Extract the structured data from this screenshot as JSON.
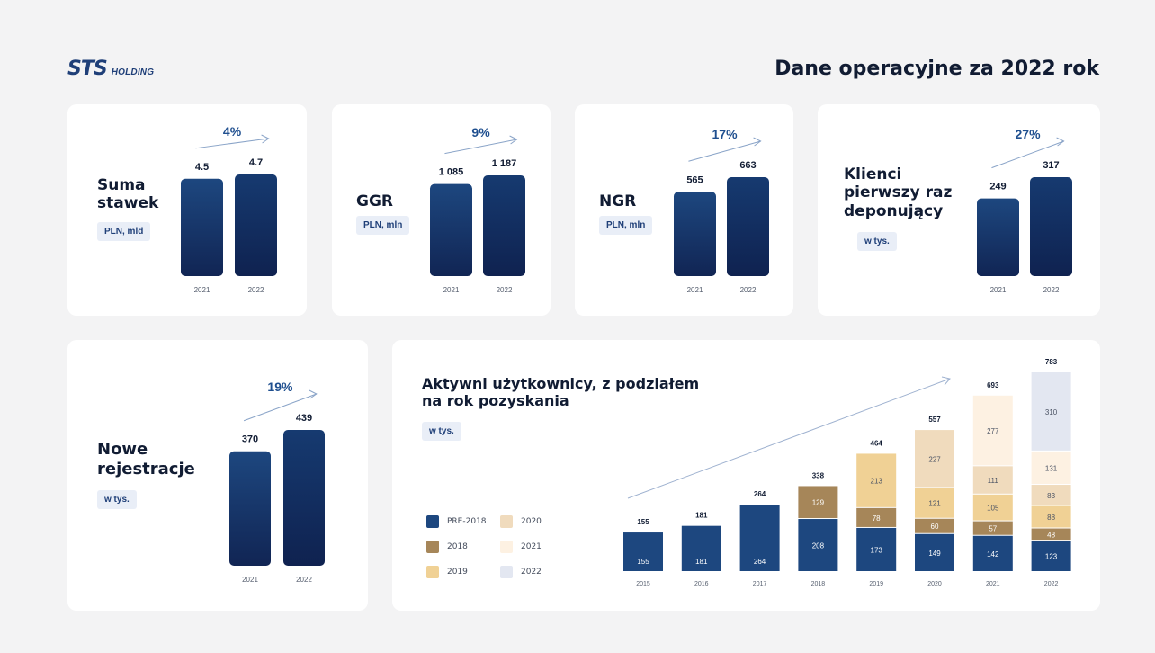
{
  "header": {
    "logo_mark": "STS",
    "logo_text": "HOLDING",
    "title": "Dane operacyjne za 2022 rok"
  },
  "colors": {
    "dark_navy": "#112554",
    "navy": "#1d477f",
    "brown": "#a68659",
    "gold": "#f0d195",
    "peach": "#f0dbbd",
    "cream": "#fdf1e2",
    "lavender": "#e3e7f1",
    "growth_text": "#1f4f8f"
  },
  "cards": {
    "suma": {
      "title": "Suma\nstawek",
      "unit": "PLN, mld",
      "growth": "4%"
    },
    "ggr": {
      "title": "GGR",
      "unit": "PLN, mln",
      "growth": "9%"
    },
    "ngr": {
      "title": "NGR",
      "unit": "PLN, mln",
      "growth": "17%"
    },
    "klienci": {
      "title": "Klienci\npierwszy raz\ndeponujący",
      "unit": "w tys.",
      "growth": "27%"
    },
    "nowe": {
      "title": "Nowe\nrejestracje",
      "unit": "w tys.",
      "growth": "19%"
    },
    "aktywni": {
      "title": "Aktywni użytkownicy, z podziałem\nna rok pozyskania",
      "unit": "w tys."
    }
  },
  "legend": [
    {
      "label": "PRE-2018",
      "color": "#1d477f"
    },
    {
      "label": "2020",
      "color": "#f0dbbd"
    },
    {
      "label": "2018",
      "color": "#a68659"
    },
    {
      "label": "2021",
      "color": "#fdf1e2"
    },
    {
      "label": "2019",
      "color": "#f0d195"
    },
    {
      "label": "2022",
      "color": "#e3e7f1"
    }
  ],
  "chart_data": [
    {
      "type": "bar",
      "id": "suma",
      "categories": [
        "2021",
        "2022"
      ],
      "values": [
        4.5,
        4.7
      ],
      "labels": [
        "4.5",
        "4.7"
      ],
      "growth_label": "4%"
    },
    {
      "type": "bar",
      "id": "ggr",
      "categories": [
        "2021",
        "2022"
      ],
      "values": [
        1085,
        1187
      ],
      "labels": [
        "1 085",
        "1 187"
      ],
      "growth_label": "9%"
    },
    {
      "type": "bar",
      "id": "ngr",
      "categories": [
        "2021",
        "2022"
      ],
      "values": [
        565,
        663
      ],
      "labels": [
        "565",
        "663"
      ],
      "growth_label": "17%"
    },
    {
      "type": "bar",
      "id": "klienci",
      "categories": [
        "2021",
        "2022"
      ],
      "values": [
        249,
        317
      ],
      "labels": [
        "249",
        "317"
      ],
      "growth_label": "27%"
    },
    {
      "type": "bar",
      "id": "nowe",
      "categories": [
        "2021",
        "2022"
      ],
      "values": [
        370,
        439
      ],
      "labels": [
        "370",
        "439"
      ],
      "growth_label": "19%"
    },
    {
      "type": "bar",
      "id": "aktywni",
      "stacked": true,
      "categories": [
        "2015",
        "2016",
        "2017",
        "2018",
        "2019",
        "2020",
        "2021",
        "2022"
      ],
      "totals": [
        155,
        181,
        264,
        338,
        464,
        557,
        693,
        783
      ],
      "series": [
        {
          "name": "PRE-2018",
          "values": [
            155,
            181,
            264,
            208,
            173,
            149,
            142,
            123
          ]
        },
        {
          "name": "2018",
          "values": [
            0,
            0,
            0,
            129,
            78,
            60,
            57,
            48
          ]
        },
        {
          "name": "2019",
          "values": [
            0,
            0,
            0,
            0,
            213,
            121,
            105,
            88
          ]
        },
        {
          "name": "2020",
          "values": [
            0,
            0,
            0,
            0,
            0,
            227,
            111,
            83
          ]
        },
        {
          "name": "2021",
          "values": [
            0,
            0,
            0,
            0,
            0,
            0,
            277,
            131
          ]
        },
        {
          "name": "2022",
          "values": [
            0,
            0,
            0,
            0,
            0,
            0,
            0,
            310
          ]
        }
      ]
    }
  ]
}
